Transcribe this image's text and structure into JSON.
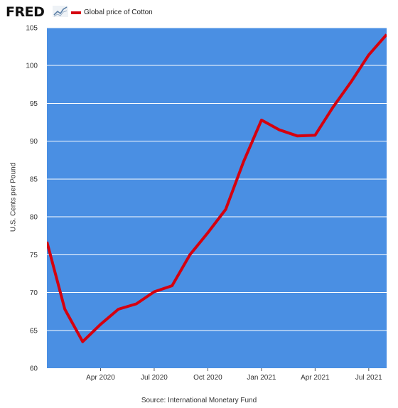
{
  "header": {
    "logo_text": "FRED",
    "logo_icon": "trend-line-icon"
  },
  "colors": {
    "plot_background": "#4a8fe3",
    "series_line": "#d5000f",
    "gridline": "#ffffff"
  },
  "chart_data": {
    "type": "line",
    "title": "",
    "xlabel": "",
    "ylabel": "U.S. Cents per Pound",
    "source": "Source: International Monetary Fund",
    "ylim": [
      60,
      105
    ],
    "yticks": [
      60,
      65,
      70,
      75,
      80,
      85,
      90,
      95,
      100,
      105
    ],
    "xlim": [
      "2020-01",
      "2021-08"
    ],
    "xticks": [
      {
        "date": "2020-04",
        "label": "Apr 2020"
      },
      {
        "date": "2020-07",
        "label": "Jul 2020"
      },
      {
        "date": "2020-10",
        "label": "Oct 2020"
      },
      {
        "date": "2021-01",
        "label": "Jan 2021"
      },
      {
        "date": "2021-04",
        "label": "Apr 2021"
      },
      {
        "date": "2021-07",
        "label": "Jul 2021"
      }
    ],
    "grid": true,
    "legend_placement": "top-left",
    "series": [
      {
        "name": "Global price of Cotton",
        "x": [
          "2020-01",
          "2020-02",
          "2020-03",
          "2020-04",
          "2020-05",
          "2020-06",
          "2020-07",
          "2020-08",
          "2020-09",
          "2020-10",
          "2020-11",
          "2020-12",
          "2021-01",
          "2021-02",
          "2021-03",
          "2021-04",
          "2021-05",
          "2021-06",
          "2021-07",
          "2021-08"
        ],
        "y": [
          76.7,
          67.8,
          63.5,
          65.8,
          67.8,
          68.5,
          70.1,
          70.9,
          75.0,
          77.9,
          81.0,
          87.3,
          92.8,
          91.5,
          90.7,
          90.8,
          94.5,
          97.8,
          101.4,
          104.1
        ]
      }
    ]
  }
}
